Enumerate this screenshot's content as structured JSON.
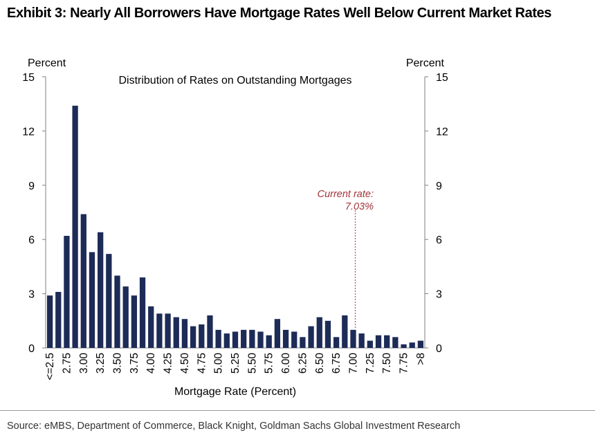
{
  "exhibit_title": "Exhibit 3: Nearly All Borrowers Have Mortgage Rates Well Below Current Market Rates",
  "source": "Source: eMBS, Department of Commerce, Black Knight, Goldman Sachs Global Investment Research",
  "colors": {
    "bar": "#1d2b57",
    "annotation": "#a1343a",
    "axis": "#7f7f7f",
    "text": "#000000"
  },
  "chart_data": {
    "type": "bar",
    "title": "Distribution of Rates on Outstanding Mortgages",
    "xlabel": "Mortgage Rate (Percent)",
    "ylabel_left": "Percent",
    "ylabel_right": "Percent",
    "ylim": [
      0,
      15
    ],
    "yticks": [
      0,
      3,
      6,
      9,
      12,
      15
    ],
    "ytick_labels": [
      "0",
      "3",
      "6",
      "9",
      "12",
      "15"
    ],
    "categories": [
      "<=2.5",
      "2.625",
      "2.75",
      "2.875",
      "3.00",
      "3.125",
      "3.25",
      "3.375",
      "3.50",
      "3.625",
      "3.75",
      "3.875",
      "4.00",
      "4.125",
      "4.25",
      "4.375",
      "4.50",
      "4.625",
      "4.75",
      "4.875",
      "5.00",
      "5.125",
      "5.25",
      "5.375",
      "5.50",
      "5.625",
      "5.75",
      "5.875",
      "6.00",
      "6.125",
      "6.25",
      "6.375",
      "6.50",
      "6.625",
      "6.75",
      "6.875",
      "7.00",
      "7.125",
      "7.25",
      "7.375",
      "7.50",
      "7.625",
      "7.75",
      "7.875",
      ">8"
    ],
    "xtick_labels": [
      {
        "index": 0,
        "label": "<=2.5"
      },
      {
        "index": 2,
        "label": "2.75"
      },
      {
        "index": 4,
        "label": "3.00"
      },
      {
        "index": 6,
        "label": "3.25"
      },
      {
        "index": 8,
        "label": "3.50"
      },
      {
        "index": 10,
        "label": "3.75"
      },
      {
        "index": 12,
        "label": "4.00"
      },
      {
        "index": 14,
        "label": "4.25"
      },
      {
        "index": 16,
        "label": "4.50"
      },
      {
        "index": 18,
        "label": "4.75"
      },
      {
        "index": 20,
        "label": "5.00"
      },
      {
        "index": 22,
        "label": "5.25"
      },
      {
        "index": 24,
        "label": "5.50"
      },
      {
        "index": 26,
        "label": "5.75"
      },
      {
        "index": 28,
        "label": "6.00"
      },
      {
        "index": 30,
        "label": "6.25"
      },
      {
        "index": 32,
        "label": "6.50"
      },
      {
        "index": 34,
        "label": "6.75"
      },
      {
        "index": 36,
        "label": "7.00"
      },
      {
        "index": 38,
        "label": "7.25"
      },
      {
        "index": 40,
        "label": "7.50"
      },
      {
        "index": 42,
        "label": "7.75"
      },
      {
        "index": 44,
        "label": ">8"
      }
    ],
    "values": [
      2.9,
      3.1,
      6.2,
      13.4,
      7.4,
      5.3,
      6.4,
      5.2,
      4.0,
      3.4,
      2.9,
      3.9,
      2.3,
      1.9,
      1.9,
      1.7,
      1.6,
      1.2,
      1.3,
      1.8,
      1.0,
      0.8,
      0.9,
      1.0,
      1.0,
      0.9,
      0.7,
      1.6,
      1.0,
      0.9,
      0.6,
      1.2,
      1.7,
      1.5,
      0.6,
      1.8,
      1.0,
      0.8,
      0.4,
      0.7,
      0.7,
      0.6,
      0.2,
      0.3,
      0.4
    ],
    "annotation": {
      "line1": "Current rate:",
      "line2": "7.03%",
      "x_value": 7.03,
      "style": "dashed vertical line"
    }
  }
}
